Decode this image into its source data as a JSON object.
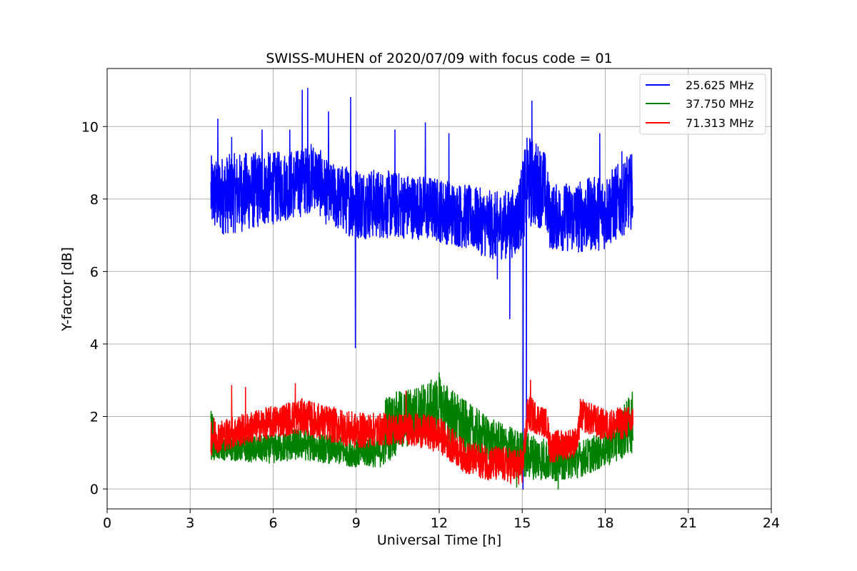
{
  "chart_data": {
    "type": "line",
    "title": "SWISS-MUHEN of 2020/07/09 with focus code = 01",
    "xlabel": "Universal Time [h]",
    "ylabel": "Y-factor [dB]",
    "xlim": [
      0,
      24
    ],
    "ylim": [
      -0.55,
      11.6
    ],
    "xticks": [
      0,
      3,
      6,
      9,
      12,
      15,
      18,
      21,
      24
    ],
    "yticks": [
      0,
      2,
      4,
      6,
      8,
      10
    ],
    "grid": true,
    "legend_position": "top-right",
    "series": [
      {
        "name": "25.625 MHz",
        "color": "#0000ff",
        "band": [
          {
            "x": 3.75,
            "lo": 7.1,
            "hi": 9.2
          },
          {
            "x": 4.0,
            "lo": 7.0,
            "hi": 9.2
          },
          {
            "x": 5.0,
            "lo": 7.1,
            "hi": 9.3
          },
          {
            "x": 6.0,
            "lo": 7.3,
            "hi": 9.3
          },
          {
            "x": 7.0,
            "lo": 7.5,
            "hi": 9.4
          },
          {
            "x": 7.5,
            "lo": 7.7,
            "hi": 9.6
          },
          {
            "x": 8.0,
            "lo": 7.2,
            "hi": 9.0
          },
          {
            "x": 9.0,
            "lo": 6.9,
            "hi": 8.9
          },
          {
            "x": 10.0,
            "lo": 6.9,
            "hi": 8.8
          },
          {
            "x": 11.0,
            "lo": 6.9,
            "hi": 8.7
          },
          {
            "x": 12.0,
            "lo": 6.8,
            "hi": 8.6
          },
          {
            "x": 13.0,
            "lo": 6.6,
            "hi": 8.4
          },
          {
            "x": 14.0,
            "lo": 6.3,
            "hi": 8.2
          },
          {
            "x": 14.8,
            "lo": 6.4,
            "hi": 8.3
          },
          {
            "x": 15.2,
            "lo": 7.2,
            "hi": 9.8
          },
          {
            "x": 15.8,
            "lo": 7.2,
            "hi": 9.4
          },
          {
            "x": 16.0,
            "lo": 6.6,
            "hi": 8.4
          },
          {
            "x": 17.0,
            "lo": 6.5,
            "hi": 8.5
          },
          {
            "x": 18.0,
            "lo": 6.6,
            "hi": 8.7
          },
          {
            "x": 19.0,
            "lo": 7.2,
            "hi": 9.3
          }
        ],
        "spikes": [
          {
            "x": 4.0,
            "y": 10.2
          },
          {
            "x": 4.5,
            "y": 9.7
          },
          {
            "x": 5.6,
            "y": 9.9
          },
          {
            "x": 6.6,
            "y": 9.9
          },
          {
            "x": 7.05,
            "y": 11.0
          },
          {
            "x": 7.25,
            "y": 11.05
          },
          {
            "x": 8.0,
            "y": 10.4
          },
          {
            "x": 8.8,
            "y": 10.8
          },
          {
            "x": 8.97,
            "y": 3.9
          },
          {
            "x": 10.4,
            "y": 9.9
          },
          {
            "x": 11.5,
            "y": 10.1
          },
          {
            "x": 12.35,
            "y": 9.8
          },
          {
            "x": 14.1,
            "y": 5.8
          },
          {
            "x": 14.55,
            "y": 4.7
          },
          {
            "x": 15.03,
            "y": 0.0
          },
          {
            "x": 15.15,
            "y": 0.5
          },
          {
            "x": 15.35,
            "y": 10.7
          },
          {
            "x": 17.8,
            "y": 9.8
          },
          {
            "x": 18.6,
            "y": 9.3
          }
        ]
      },
      {
        "name": "37.750 MHz",
        "color": "#008000",
        "band": [
          {
            "x": 3.75,
            "lo": 0.8,
            "hi": 2.3
          },
          {
            "x": 4.0,
            "lo": 0.8,
            "hi": 1.4
          },
          {
            "x": 6.0,
            "lo": 0.7,
            "hi": 1.5
          },
          {
            "x": 7.0,
            "lo": 0.8,
            "hi": 1.7
          },
          {
            "x": 8.0,
            "lo": 0.7,
            "hi": 1.5
          },
          {
            "x": 9.0,
            "lo": 0.6,
            "hi": 1.4
          },
          {
            "x": 10.0,
            "lo": 0.6,
            "hi": 1.5
          },
          {
            "x": 10.05,
            "lo": 0.7,
            "hi": 2.6
          },
          {
            "x": 11.0,
            "lo": 1.2,
            "hi": 2.8
          },
          {
            "x": 12.0,
            "lo": 1.5,
            "hi": 3.1
          },
          {
            "x": 13.0,
            "lo": 0.9,
            "hi": 2.4
          },
          {
            "x": 14.0,
            "lo": 0.7,
            "hi": 1.9
          },
          {
            "x": 15.0,
            "lo": 0.3,
            "hi": 1.6
          },
          {
            "x": 16.0,
            "lo": 0.2,
            "hi": 1.4
          },
          {
            "x": 17.0,
            "lo": 0.3,
            "hi": 1.3
          },
          {
            "x": 18.0,
            "lo": 0.6,
            "hi": 1.6
          },
          {
            "x": 19.0,
            "lo": 1.0,
            "hi": 2.7
          }
        ],
        "spikes": [
          {
            "x": 12.0,
            "y": 3.2
          },
          {
            "x": 14.8,
            "y": 0.05
          },
          {
            "x": 16.3,
            "y": 0.0
          }
        ]
      },
      {
        "name": "71.313 MHz",
        "color": "#ff0000",
        "band": [
          {
            "x": 3.75,
            "lo": 0.9,
            "hi": 2.1
          },
          {
            "x": 4.0,
            "lo": 1.0,
            "hi": 1.9
          },
          {
            "x": 5.0,
            "lo": 1.2,
            "hi": 2.1
          },
          {
            "x": 6.0,
            "lo": 1.4,
            "hi": 2.3
          },
          {
            "x": 7.0,
            "lo": 1.5,
            "hi": 2.5
          },
          {
            "x": 8.0,
            "lo": 1.3,
            "hi": 2.3
          },
          {
            "x": 9.0,
            "lo": 1.1,
            "hi": 2.1
          },
          {
            "x": 10.0,
            "lo": 1.2,
            "hi": 2.1
          },
          {
            "x": 11.0,
            "lo": 1.2,
            "hi": 2.1
          },
          {
            "x": 12.0,
            "lo": 1.0,
            "hi": 2.0
          },
          {
            "x": 13.0,
            "lo": 0.4,
            "hi": 1.3
          },
          {
            "x": 14.0,
            "lo": 0.2,
            "hi": 1.2
          },
          {
            "x": 15.0,
            "lo": 0.1,
            "hi": 1.1
          },
          {
            "x": 15.2,
            "lo": 1.6,
            "hi": 2.6
          },
          {
            "x": 15.9,
            "lo": 1.4,
            "hi": 2.2
          },
          {
            "x": 16.0,
            "lo": 0.7,
            "hi": 1.6
          },
          {
            "x": 17.0,
            "lo": 0.9,
            "hi": 1.7
          },
          {
            "x": 17.1,
            "lo": 1.6,
            "hi": 2.5
          },
          {
            "x": 18.0,
            "lo": 1.3,
            "hi": 2.2
          },
          {
            "x": 19.0,
            "lo": 1.4,
            "hi": 2.3
          }
        ],
        "spikes": [
          {
            "x": 4.5,
            "y": 2.85
          },
          {
            "x": 5.0,
            "y": 2.8
          },
          {
            "x": 6.8,
            "y": 2.9
          },
          {
            "x": 10.8,
            "y": 2.7
          },
          {
            "x": 15.3,
            "y": 3.0
          }
        ]
      }
    ]
  }
}
